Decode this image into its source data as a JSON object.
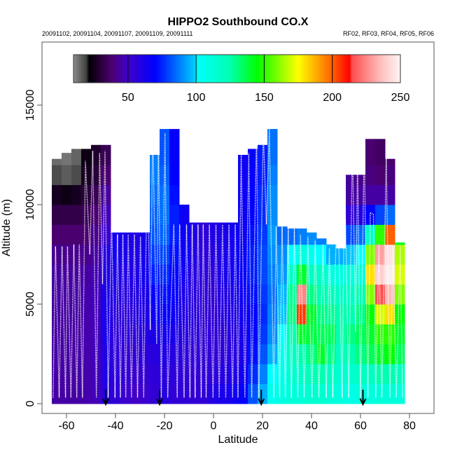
{
  "chart_data": {
    "type": "heatmap",
    "title": "HIPPO2 Southbound CO.X",
    "subtitle_left": "20091102, 20091104, 20091107, 20091109, 20091111",
    "subtitle_right": "RF02, RF03, RF04, RF05, RF06",
    "xlabel": "Latitude",
    "ylabel": "Altitude (m)",
    "xlim": [
      -70,
      95
    ],
    "ylim": [
      0,
      18700
    ],
    "xticks": [
      -60,
      -40,
      -20,
      0,
      20,
      40,
      60,
      80
    ],
    "xtick_labels": [
      "-60",
      "-40",
      "-20",
      "0",
      "20",
      "40",
      "60",
      "80"
    ],
    "yticks": [
      0,
      5000,
      10000,
      15000
    ],
    "ytick_labels": [
      "0",
      "5000",
      "10000",
      "15000"
    ],
    "colorbar": {
      "range": [
        10,
        250
      ],
      "ticks": [
        50,
        100,
        150,
        200,
        250
      ],
      "tick_labels": [
        "50",
        "100",
        "150",
        "200",
        "250"
      ],
      "stops": [
        [
          10,
          "#8c8c8c"
        ],
        [
          20,
          "#3c3c3c"
        ],
        [
          21,
          "#000000"
        ],
        [
          38,
          "#4b0070"
        ],
        [
          50,
          "#4000c8"
        ],
        [
          70,
          "#0000ff"
        ],
        [
          99,
          "#00ccff"
        ],
        [
          100,
          "#00ffff"
        ],
        [
          125,
          "#00ffb0"
        ],
        [
          145,
          "#00ff00"
        ],
        [
          175,
          "#ffff00"
        ],
        [
          200,
          "#ff6000"
        ],
        [
          213,
          "#ff0000"
        ],
        [
          214,
          "#ff4a4a"
        ],
        [
          226,
          "#ff8c8c"
        ],
        [
          238,
          "#ffc8c8"
        ],
        [
          250,
          "#fff4f4"
        ]
      ]
    },
    "lat_bin_centers": [
      -64,
      -60,
      -56,
      -52,
      -48,
      -44,
      -40,
      -36,
      -32,
      -28,
      -24,
      -20,
      -16,
      -12,
      -8,
      -4,
      0,
      4,
      8,
      12,
      16,
      20,
      24,
      28,
      32,
      36,
      40,
      44,
      48,
      52,
      56,
      60,
      64,
      68,
      72,
      76
    ],
    "lat_bin_width": 4,
    "alt_levels": [
      500,
      1500,
      2500,
      3500,
      4500,
      5500,
      6500,
      7500,
      8500,
      9500,
      10500,
      11500,
      12500,
      13500
    ],
    "alt_bin_height": 1000,
    "column_ceiling": [
      12300,
      12600,
      12800,
      12800,
      13000,
      13000,
      8600,
      8600,
      8600,
      8600,
      12500,
      13800,
      13800,
      10000,
      9100,
      9100,
      9100,
      9100,
      9100,
      12500,
      12800,
      13000,
      13800,
      8900,
      8800,
      8800,
      8600,
      8300,
      8000,
      7800,
      11500,
      11500,
      13300,
      13300,
      12300,
      8100
    ],
    "values": [
      [
        45,
        45,
        45,
        45,
        45,
        45,
        45,
        42,
        38,
        32,
        26,
        18,
        14,
        14
      ],
      [
        45,
        45,
        45,
        45,
        45,
        45,
        44,
        42,
        38,
        32,
        24,
        16,
        13,
        13
      ],
      [
        45,
        45,
        45,
        45,
        45,
        45,
        44,
        42,
        38,
        32,
        26,
        18,
        15,
        15
      ],
      [
        46,
        46,
        46,
        46,
        46,
        46,
        45,
        42,
        38,
        34,
        30,
        26,
        24,
        24
      ],
      [
        48,
        48,
        48,
        48,
        48,
        48,
        47,
        45,
        42,
        38,
        34,
        30,
        28,
        28
      ],
      [
        58,
        60,
        60,
        62,
        62,
        62,
        60,
        58,
        52,
        48,
        44,
        38,
        34,
        34
      ],
      [
        55,
        56,
        56,
        56,
        58,
        60,
        62,
        64,
        64,
        64,
        64,
        64,
        64,
        64
      ],
      [
        52,
        54,
        54,
        56,
        56,
        58,
        60,
        62,
        62,
        62,
        62,
        62,
        62,
        62
      ],
      [
        50,
        52,
        54,
        56,
        58,
        60,
        60,
        60,
        60,
        60,
        60,
        60,
        60,
        60
      ],
      [
        52,
        54,
        56,
        58,
        60,
        62,
        64,
        64,
        64,
        64,
        64,
        64,
        64,
        64
      ],
      [
        55,
        56,
        58,
        62,
        66,
        70,
        74,
        78,
        82,
        84,
        86,
        88,
        88,
        88
      ],
      [
        58,
        58,
        60,
        64,
        68,
        72,
        76,
        80,
        84,
        86,
        86,
        84,
        82,
        82
      ],
      [
        55,
        56,
        58,
        62,
        66,
        68,
        70,
        72,
        74,
        74,
        72,
        70,
        68,
        68
      ],
      [
        55,
        55,
        56,
        58,
        60,
        62,
        64,
        66,
        66,
        66,
        66,
        66,
        66,
        66
      ],
      [
        54,
        54,
        55,
        56,
        58,
        58,
        58,
        60,
        60,
        60,
        60,
        60,
        60,
        60
      ],
      [
        55,
        55,
        55,
        55,
        55,
        55,
        56,
        56,
        56,
        56,
        56,
        56,
        56,
        56
      ],
      [
        60,
        56,
        55,
        55,
        55,
        55,
        56,
        58,
        60,
        60,
        60,
        60,
        60,
        60
      ],
      [
        62,
        58,
        56,
        56,
        58,
        60,
        62,
        62,
        62,
        62,
        62,
        62,
        62,
        62
      ],
      [
        64,
        60,
        58,
        58,
        60,
        62,
        64,
        64,
        64,
        64,
        64,
        64,
        64,
        64
      ],
      [
        68,
        64,
        62,
        62,
        64,
        66,
        68,
        68,
        66,
        66,
        66,
        66,
        66,
        66
      ],
      [
        82,
        76,
        72,
        70,
        70,
        72,
        74,
        74,
        72,
        70,
        70,
        68,
        68,
        68
      ],
      [
        95,
        88,
        82,
        78,
        76,
        78,
        80,
        80,
        78,
        76,
        76,
        74,
        74,
        74
      ],
      [
        105,
        100,
        95,
        90,
        88,
        86,
        88,
        90,
        92,
        90,
        90,
        88,
        86,
        86
      ],
      [
        110,
        108,
        105,
        100,
        98,
        96,
        92,
        90,
        85,
        80,
        80,
        80,
        80,
        80
      ],
      [
        112,
        115,
        118,
        125,
        130,
        128,
        118,
        100,
        85,
        80,
        80,
        80,
        80,
        80
      ],
      [
        112,
        118,
        125,
        140,
        205,
        225,
        140,
        110,
        88,
        80,
        80,
        80,
        80,
        80
      ],
      [
        115,
        122,
        130,
        138,
        140,
        130,
        120,
        105,
        90,
        82,
        80,
        80,
        80,
        80
      ],
      [
        115,
        125,
        140,
        135,
        130,
        125,
        118,
        100,
        88,
        80,
        80,
        80,
        80,
        80
      ],
      [
        112,
        118,
        130,
        135,
        128,
        120,
        110,
        95,
        80,
        70,
        70,
        70,
        70,
        70
      ],
      [
        110,
        115,
        120,
        125,
        125,
        118,
        110,
        95,
        75,
        60,
        60,
        60,
        60,
        60
      ],
      [
        108,
        115,
        125,
        130,
        125,
        118,
        110,
        98,
        80,
        55,
        45,
        44,
        44,
        44
      ],
      [
        110,
        118,
        130,
        135,
        130,
        125,
        112,
        100,
        85,
        60,
        45,
        42,
        42,
        42
      ],
      [
        110,
        120,
        135,
        140,
        145,
        160,
        180,
        160,
        120,
        70,
        45,
        40,
        38,
        38
      ],
      [
        112,
        125,
        140,
        150,
        170,
        215,
        240,
        230,
        150,
        80,
        45,
        38,
        36,
        36
      ],
      [
        112,
        125,
        145,
        150,
        180,
        235,
        248,
        245,
        200,
        85,
        45,
        40,
        38,
        38
      ],
      [
        110,
        120,
        135,
        140,
        145,
        160,
        170,
        165,
        140,
        90,
        60,
        60,
        60,
        60
      ]
    ],
    "flight_track": [
      [
        -65.5,
        300
      ],
      [
        -64.5,
        7900
      ],
      [
        -63,
        300
      ],
      [
        -61.8,
        7900
      ],
      [
        -60.4,
        300
      ],
      [
        -59.6,
        7900
      ],
      [
        -58.2,
        300
      ],
      [
        -57,
        8000
      ],
      [
        -55.8,
        300
      ],
      [
        -54.8,
        8000
      ],
      [
        -53.5,
        300
      ],
      [
        -52.3,
        12200
      ],
      [
        -50.5,
        7500
      ],
      [
        -49.3,
        12700
      ],
      [
        -47.8,
        300
      ],
      [
        -46.5,
        12600
      ],
      [
        -45.3,
        6000
      ],
      [
        -44.3,
        12700
      ],
      [
        -43,
        300
      ],
      [
        -41.6,
        9400
      ],
      [
        -40.2,
        300
      ],
      [
        -39.2,
        8500
      ],
      [
        -38,
        300
      ],
      [
        -37,
        8500
      ],
      [
        -35.8,
        300
      ],
      [
        -34.8,
        8500
      ],
      [
        -33.5,
        300
      ],
      [
        -32.3,
        8500
      ],
      [
        -31,
        300
      ],
      [
        -29.8,
        8400
      ],
      [
        -28.5,
        300
      ],
      [
        -27,
        12300
      ],
      [
        -25.8,
        3700
      ],
      [
        -24.8,
        13800
      ],
      [
        -23.2,
        3000
      ],
      [
        -22.5,
        13800
      ],
      [
        -21.3,
        300
      ],
      [
        -19.8,
        13600
      ],
      [
        -18.7,
        300
      ],
      [
        -16.2,
        9000
      ],
      [
        -14.8,
        300
      ],
      [
        -13.8,
        9000
      ],
      [
        -12,
        300
      ],
      [
        -11,
        9000
      ],
      [
        -9.6,
        300
      ],
      [
        -8.7,
        9000
      ],
      [
        -7.5,
        300
      ],
      [
        -6.3,
        9000
      ],
      [
        -5,
        300
      ],
      [
        -4.2,
        9000
      ],
      [
        -3,
        300
      ],
      [
        -1.7,
        9000
      ],
      [
        -0.2,
        300
      ],
      [
        1,
        9000
      ],
      [
        2.3,
        300
      ],
      [
        3.7,
        9000
      ],
      [
        5,
        300
      ],
      [
        6.3,
        9000
      ],
      [
        7.8,
        300
      ],
      [
        8.9,
        9000
      ],
      [
        10,
        300
      ],
      [
        11.3,
        12600
      ],
      [
        12.8,
        300
      ],
      [
        14.4,
        12600
      ],
      [
        15.6,
        300
      ],
      [
        17.6,
        13800
      ],
      [
        18.5,
        300
      ],
      [
        20.3,
        13800
      ],
      [
        21.6,
        9000
      ],
      [
        22.8,
        13800
      ],
      [
        24.6,
        300
      ],
      [
        25.6,
        8900
      ],
      [
        27,
        300
      ],
      [
        28,
        8900
      ],
      [
        29.3,
        300
      ],
      [
        30.5,
        8800
      ],
      [
        31.8,
        300
      ],
      [
        33,
        8800
      ],
      [
        34.4,
        300
      ],
      [
        35.5,
        8500
      ],
      [
        37,
        300
      ],
      [
        38.5,
        8400
      ],
      [
        40.2,
        300
      ],
      [
        41.5,
        8200
      ],
      [
        43,
        300
      ],
      [
        44.7,
        8000
      ],
      [
        46,
        300
      ],
      [
        47.3,
        7800
      ],
      [
        48.7,
        300
      ],
      [
        50.5,
        11600
      ],
      [
        52.5,
        300
      ],
      [
        53.5,
        11600
      ],
      [
        55.2,
        300
      ],
      [
        56.7,
        13100
      ],
      [
        58,
        3600
      ],
      [
        58.8,
        12500
      ],
      [
        60,
        300
      ],
      [
        61.5,
        13200
      ],
      [
        63,
        300
      ],
      [
        64,
        9600
      ],
      [
        65.3,
        9500
      ],
      [
        66.2,
        300
      ],
      [
        67.5,
        8000
      ],
      [
        68.7,
        300
      ],
      [
        70.5,
        12400
      ],
      [
        72,
        300
      ],
      [
        73.3,
        7900
      ],
      [
        74.6,
        300
      ],
      [
        76.2,
        7900
      ],
      [
        77.2,
        300
      ]
    ],
    "arrow_latitudes": [
      -44,
      -22,
      19.5,
      61
    ]
  }
}
